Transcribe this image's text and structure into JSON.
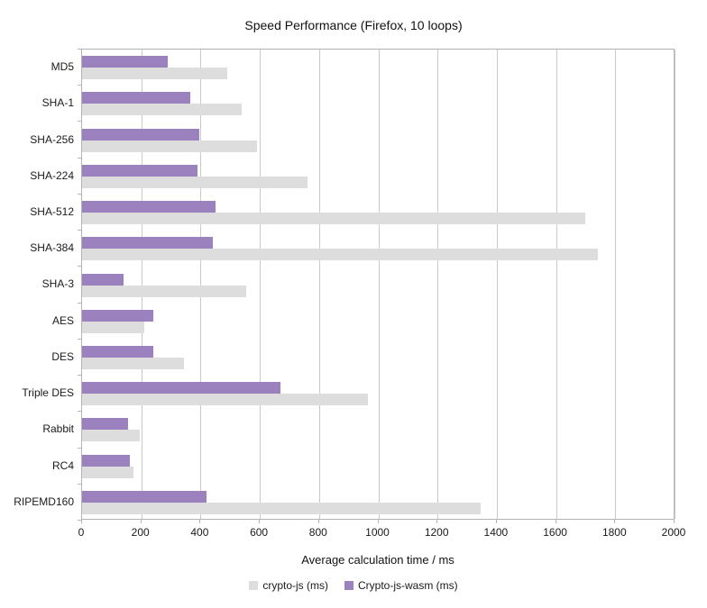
{
  "chart_data": {
    "type": "bar",
    "orientation": "horizontal",
    "title": "Speed Performance (Firefox, 10 loops)",
    "xlabel": "Average calculation time / ms",
    "categories": [
      "MD5",
      "SHA-1",
      "SHA-256",
      "SHA-224",
      "SHA-512",
      "SHA-384",
      "SHA-3",
      "AES",
      "DES",
      "Triple DES",
      "Rabbit",
      "RC4",
      "RIPEMD160"
    ],
    "series": [
      {
        "name": "crypto-js (ms)",
        "color": "#dddddd",
        "values": [
          490,
          540,
          590,
          760,
          1700,
          1740,
          555,
          210,
          345,
          965,
          195,
          175,
          1345
        ]
      },
      {
        "name": "Crypto-js-wasm (ms)",
        "color": "#9b82be",
        "values": [
          290,
          365,
          395,
          390,
          450,
          440,
          140,
          240,
          240,
          670,
          155,
          160,
          420
        ]
      }
    ],
    "xlim": [
      0,
      2000
    ],
    "xticks": [
      0,
      200,
      400,
      600,
      800,
      1000,
      1200,
      1400,
      1600,
      1800,
      2000
    ],
    "grid": true,
    "legend_position": "bottom",
    "group_draw_order": "Crypto-js-wasm bar on top, crypto-js bar below",
    "colors_meta": {
      "gridline": "#c9c9c9",
      "plot_border": "#b3b3b3",
      "text": "#1a1a1a"
    }
  }
}
